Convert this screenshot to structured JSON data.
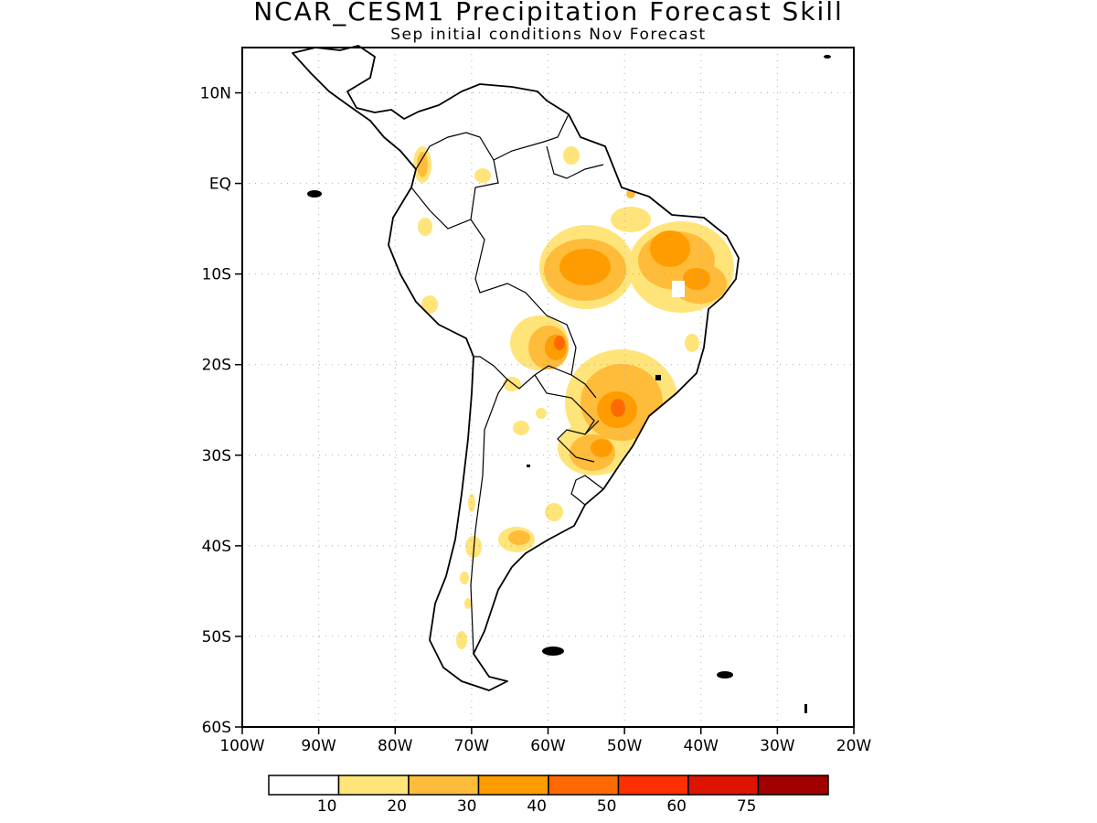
{
  "header": {
    "title": "NCAR_CESM1 Precipitation Forecast Skill",
    "subtitle": "Sep initial conditions   Nov Forecast"
  },
  "map": {
    "region": "South America",
    "lon_range": [
      -100,
      -20
    ],
    "lat_range": [
      -60,
      15
    ],
    "lat_ticks": [
      {
        "value": 10,
        "label": "10N"
      },
      {
        "value": 0,
        "label": "EQ"
      },
      {
        "value": -10,
        "label": "10S"
      },
      {
        "value": -20,
        "label": "20S"
      },
      {
        "value": -30,
        "label": "30S"
      },
      {
        "value": -40,
        "label": "40S"
      },
      {
        "value": -50,
        "label": "50S"
      },
      {
        "value": -60,
        "label": "60S"
      }
    ],
    "lon_ticks": [
      {
        "value": -100,
        "label": "100W"
      },
      {
        "value": -90,
        "label": "90W"
      },
      {
        "value": -80,
        "label": "80W"
      },
      {
        "value": -70,
        "label": "70W"
      },
      {
        "value": -60,
        "label": "60W"
      },
      {
        "value": -50,
        "label": "50W"
      },
      {
        "value": -40,
        "label": "40W"
      },
      {
        "value": -30,
        "label": "30W"
      },
      {
        "value": -20,
        "label": "20W"
      }
    ],
    "grid": "dotted"
  },
  "legend": {
    "colors": [
      "#ffffff",
      "#ffe47a",
      "#ffbb3a",
      "#ff9c00",
      "#ff6a00",
      "#ff3000",
      "#dc1400",
      "#a00000"
    ],
    "labels": [
      "10",
      "20",
      "30",
      "40",
      "50",
      "60",
      "75"
    ]
  }
}
